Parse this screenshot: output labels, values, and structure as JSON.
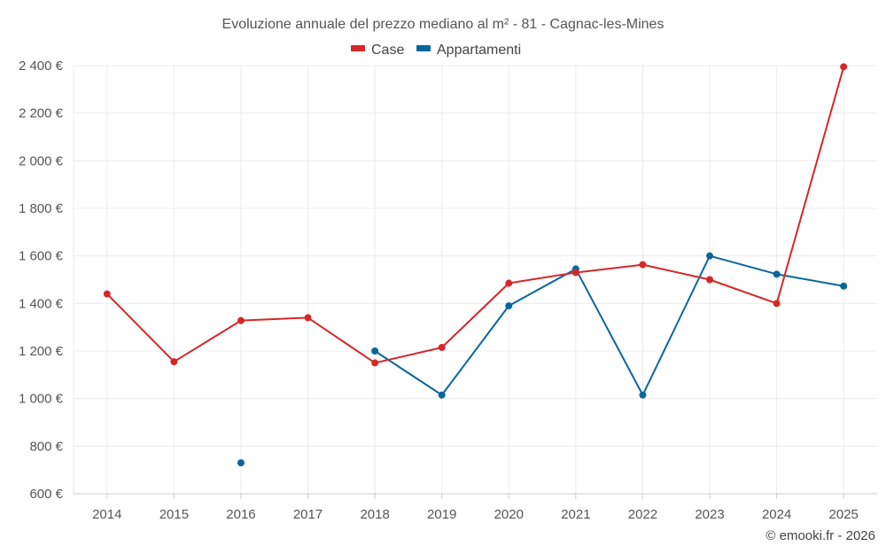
{
  "chart_data": {
    "type": "line",
    "title": "Evoluzione annuale del prezzo mediano al m² - 81 - Cagnac-les-Mines",
    "xlabel": "",
    "ylabel": "",
    "categories": [
      "2014",
      "2015",
      "2016",
      "2017",
      "2018",
      "2019",
      "2020",
      "2021",
      "2022",
      "2023",
      "2024",
      "2025"
    ],
    "ylim": [
      600,
      2400
    ],
    "yticks": [
      600,
      800,
      1000,
      1200,
      1400,
      1600,
      1800,
      2000,
      2200,
      2400
    ],
    "ytick_labels": [
      "600 €",
      "800 €",
      "1 000 €",
      "1 200 €",
      "1 400 €",
      "1 600 €",
      "1 800 €",
      "2 000 €",
      "2 200 €",
      "2 400 €"
    ],
    "grid": true,
    "legend_position": "top-center",
    "series": [
      {
        "name": "Case",
        "color": "#d62728",
        "values": [
          1440,
          1155,
          1328,
          1340,
          1150,
          1215,
          1485,
          1530,
          1563,
          1500,
          1400,
          2395
        ]
      },
      {
        "name": "Appartamenti",
        "color": "#08679c",
        "values": [
          null,
          null,
          730,
          null,
          1200,
          1015,
          1390,
          1545,
          1015,
          1600,
          1523,
          1473
        ]
      }
    ]
  },
  "credit": "© emooki.fr - 2026"
}
